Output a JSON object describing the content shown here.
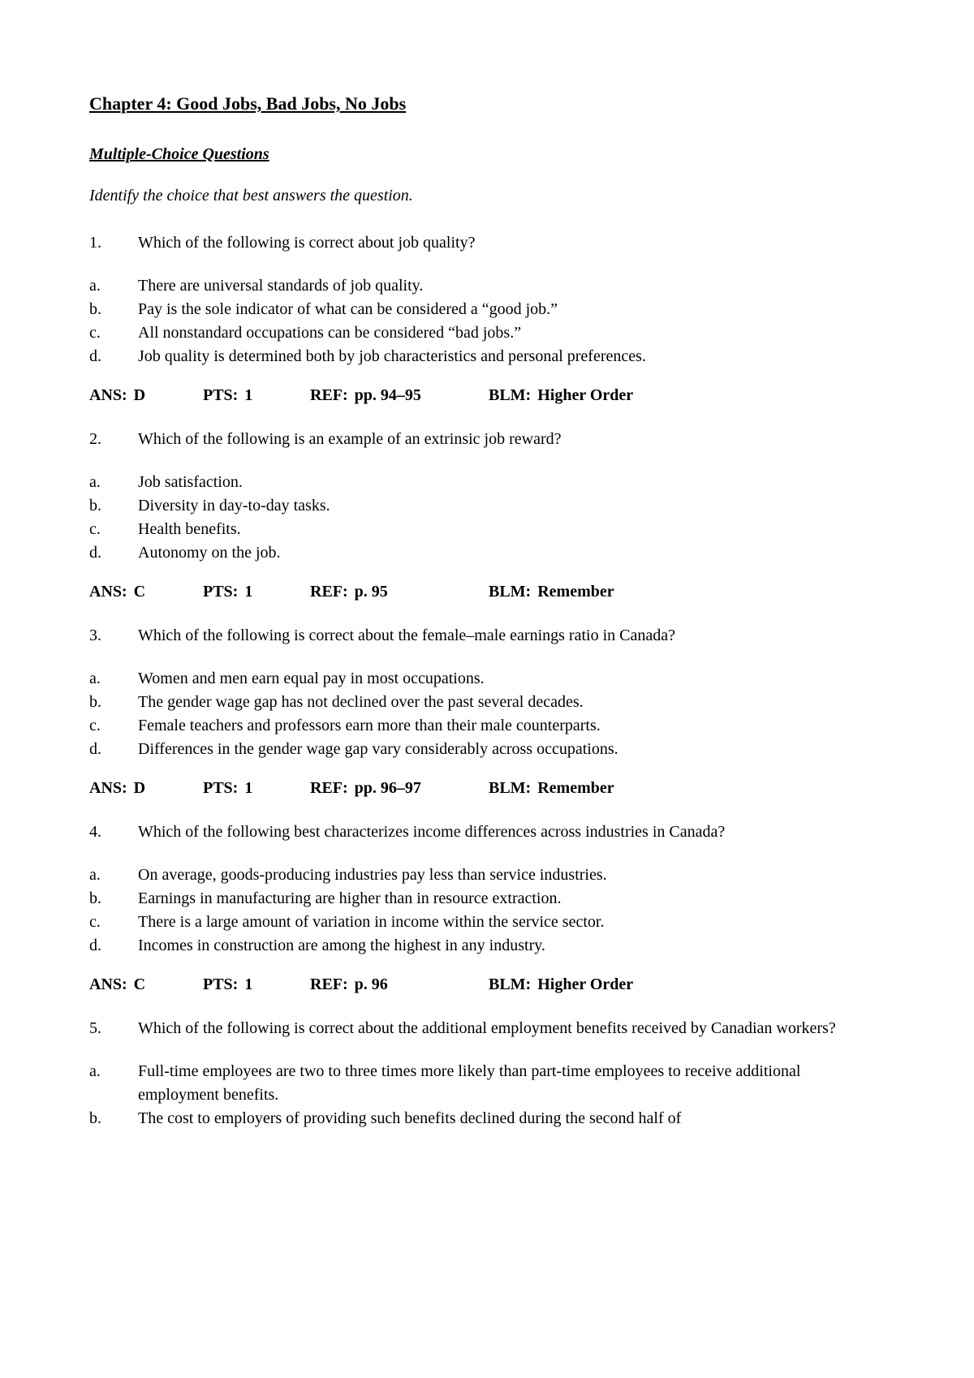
{
  "chapter_title": "Chapter 4: Good Jobs, Bad Jobs, No Jobs",
  "section_title": "Multiple-Choice Questions",
  "instruction": "Identify the choice that best answers the question.",
  "labels": {
    "ans": "ANS:",
    "pts": "PTS:",
    "ref": "REF:",
    "blm": "BLM:"
  },
  "questions": [
    {
      "num": "1.",
      "text": "Which of the following is correct about job quality?",
      "options": [
        {
          "label": "a.",
          "text": "There are universal standards of job quality."
        },
        {
          "label": "b.",
          "text": "Pay is the sole indicator of what can be considered a “good job.”"
        },
        {
          "label": "c.",
          "text": "All nonstandard occupations can be considered “bad jobs.”"
        },
        {
          "label": "d.",
          "text": "Job quality is determined both by job characteristics and personal preferences."
        }
      ],
      "ans": "D",
      "pts": "1",
      "ref": "pp. 94–95",
      "blm": "Higher Order"
    },
    {
      "num": "2.",
      "text": "Which of the following is an example of an extrinsic job reward?",
      "options": [
        {
          "label": "a.",
          "text": "Job satisfaction."
        },
        {
          "label": "b.",
          "text": "Diversity in day-to-day tasks."
        },
        {
          "label": "c.",
          "text": "Health benefits."
        },
        {
          "label": "d.",
          "text": "Autonomy on the job."
        }
      ],
      "ans": "C",
      "pts": "1",
      "ref": "p. 95",
      "blm": "Remember"
    },
    {
      "num": "3.",
      "text": "Which of the following is correct about the female–male earnings ratio in Canada?",
      "options": [
        {
          "label": "a.",
          "text": "Women and men earn equal pay in most occupations."
        },
        {
          "label": "b.",
          "text": "The gender wage gap has not declined over the past several decades."
        },
        {
          "label": "c.",
          "text": "Female teachers and professors earn more than their male counterparts."
        },
        {
          "label": "d.",
          "text": "Differences in the gender wage gap vary considerably across occupations."
        }
      ],
      "ans": "D",
      "pts": "1",
      "ref": "pp. 96–97",
      "blm": "Remember"
    },
    {
      "num": "4.",
      "text": "Which of the following best characterizes income differences across industries in Canada?",
      "options": [
        {
          "label": "a.",
          "text": "On average, goods-producing industries pay less than service industries."
        },
        {
          "label": "b.",
          "text": "Earnings in manufacturing are higher than in resource extraction."
        },
        {
          "label": "c.",
          "text": "There is a large amount of variation in income within the service sector."
        },
        {
          "label": "d.",
          "text": "Incomes in construction are among the highest in any industry."
        }
      ],
      "ans": "C",
      "pts": "1",
      "ref": "p. 96",
      "blm": "Higher Order"
    },
    {
      "num": "5.",
      "text": "Which of the following is correct about the additional employment benefits received by Canadian workers?",
      "options": [
        {
          "label": "a.",
          "text": "Full-time employees are two to three times more likely than part-time employees to receive additional employment benefits."
        },
        {
          "label": "b.",
          "text": "The cost to employers of providing such benefits declined during the second half of"
        }
      ],
      "ans": null,
      "pts": null,
      "ref": null,
      "blm": null
    }
  ]
}
